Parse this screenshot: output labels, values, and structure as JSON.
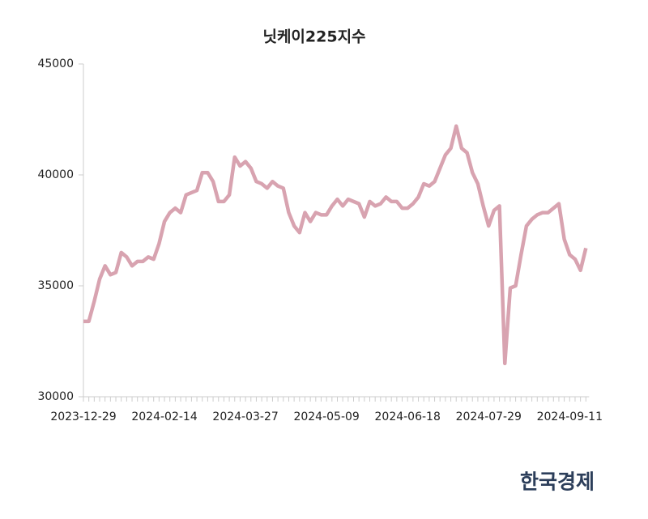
{
  "chart_data": {
    "type": "line",
    "title": "닛케이225지수",
    "categories": [
      "2023-12-29",
      null,
      null,
      null,
      null,
      null,
      null,
      null,
      null,
      null,
      null,
      null,
      null,
      null,
      null,
      "2024-02-14",
      null,
      null,
      null,
      null,
      null,
      null,
      null,
      null,
      null,
      null,
      null,
      null,
      null,
      null,
      "2024-03-27",
      null,
      null,
      null,
      null,
      null,
      null,
      null,
      null,
      null,
      null,
      null,
      null,
      null,
      null,
      "2024-05-09",
      null,
      null,
      null,
      null,
      null,
      null,
      null,
      null,
      null,
      null,
      null,
      null,
      null,
      null,
      "2024-06-18",
      null,
      null,
      null,
      null,
      null,
      null,
      null,
      null,
      null,
      null,
      null,
      null,
      null,
      null,
      "2024-07-29",
      null,
      null,
      null,
      null,
      null,
      null,
      null,
      null,
      null,
      null,
      null,
      null,
      null,
      null,
      "2024-09-11",
      null,
      null,
      null
    ],
    "series": [
      {
        "name": "닛케이225지수",
        "color": "#d8a3b0",
        "values": [
          33400,
          33400,
          34300,
          35300,
          35900,
          35500,
          35600,
          36500,
          36300,
          35900,
          36100,
          36100,
          36300,
          36200,
          36900,
          37900,
          38300,
          38500,
          38300,
          39100,
          39200,
          39300,
          40100,
          40100,
          39700,
          38800,
          38800,
          39100,
          40800,
          40400,
          40600,
          40300,
          39700,
          39600,
          39400,
          39700,
          39500,
          39400,
          38300,
          37700,
          37400,
          38300,
          37900,
          38300,
          38200,
          38200,
          38600,
          38900,
          38600,
          38900,
          38800,
          38700,
          38100,
          38800,
          38600,
          38700,
          39000,
          38800,
          38800,
          38500,
          38500,
          38700,
          39000,
          39600,
          39500,
          39700,
          40300,
          40900,
          41200,
          42200,
          41200,
          41000,
          40100,
          39600,
          38600,
          37700,
          38400,
          38600,
          31500,
          34900,
          35000,
          36400,
          37700,
          38000,
          38200,
          38300,
          38300,
          38500,
          38700,
          37100,
          36400,
          36200,
          35700,
          36700
        ]
      }
    ],
    "ylim": [
      30000,
      45000
    ],
    "yticks": [
      30000,
      35000,
      40000,
      45000
    ],
    "logo": "한국경제"
  }
}
